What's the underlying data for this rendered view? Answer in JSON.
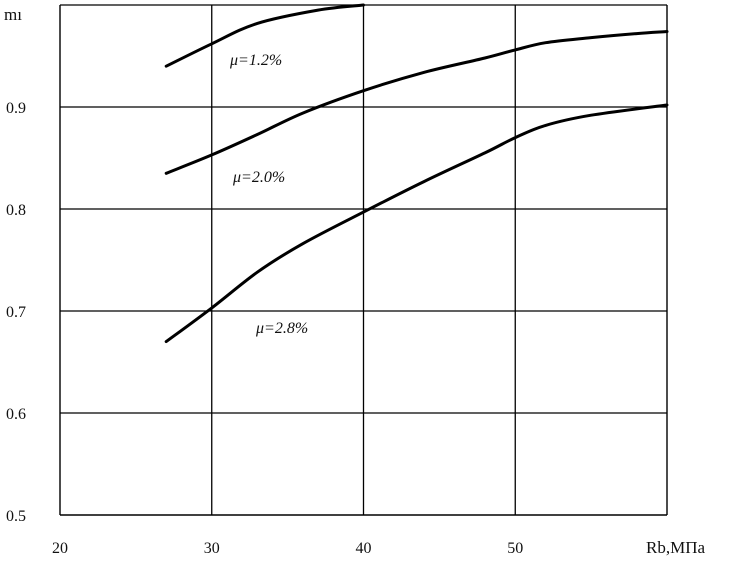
{
  "chart_data": {
    "type": "line",
    "title": "",
    "xlabel": "Rb,МПа",
    "ylabel": "mı",
    "xlim": [
      20,
      60
    ],
    "ylim": [
      0.5,
      1.0
    ],
    "grid": true,
    "x_ticks": [
      "20",
      "30",
      "40",
      "50"
    ],
    "y_ticks": [
      "0.5",
      "0.6",
      "0.7",
      "0.8",
      "0.9"
    ],
    "series": [
      {
        "name": "μ=1.2%",
        "color": "#000000",
        "points": [
          [
            27,
            0.94
          ],
          [
            30,
            0.962
          ],
          [
            33,
            0.982
          ],
          [
            37,
            0.995
          ],
          [
            40,
            1.0
          ]
        ]
      },
      {
        "name": "μ=2.0%",
        "color": "#000000",
        "points": [
          [
            27,
            0.835
          ],
          [
            30,
            0.853
          ],
          [
            33,
            0.873
          ],
          [
            36,
            0.894
          ],
          [
            40,
            0.916
          ],
          [
            44,
            0.934
          ],
          [
            48,
            0.948
          ],
          [
            50,
            0.956
          ],
          [
            52,
            0.963
          ],
          [
            55,
            0.968
          ],
          [
            58,
            0.972
          ],
          [
            60,
            0.974
          ]
        ]
      },
      {
        "name": "μ=2.8%",
        "color": "#000000",
        "points": [
          [
            27,
            0.67
          ],
          [
            30,
            0.703
          ],
          [
            33,
            0.738
          ],
          [
            36,
            0.766
          ],
          [
            40,
            0.797
          ],
          [
            44,
            0.827
          ],
          [
            48,
            0.855
          ],
          [
            50,
            0.87
          ],
          [
            52,
            0.882
          ],
          [
            55,
            0.892
          ],
          [
            60,
            0.902
          ]
        ]
      }
    ]
  }
}
